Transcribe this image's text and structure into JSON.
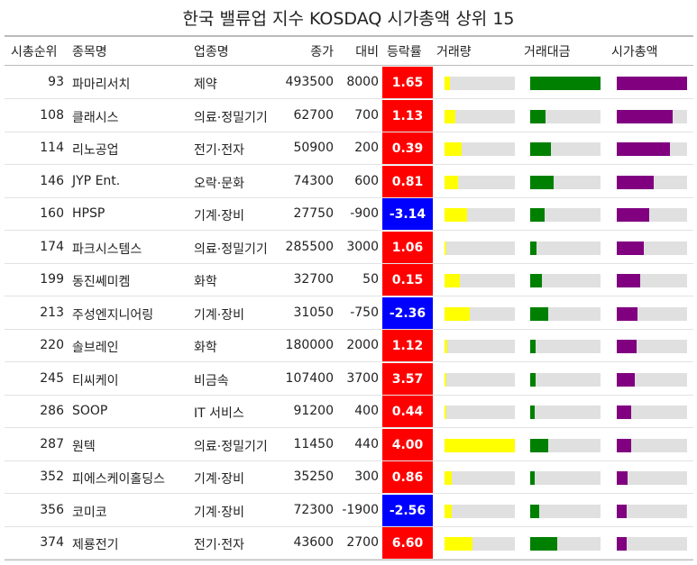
{
  "title": "한국 밸류업 지수 KOSDAQ 시가총액 상위 15",
  "columns": {
    "rank": "시총순위",
    "name": "종목명",
    "sector": "업종명",
    "close": "종가",
    "diff": "대비",
    "change": "등락률",
    "volume": "거래량",
    "turnover": "거래대금",
    "marketcap": "시가총액"
  },
  "colors": {
    "up": "#ff0000",
    "down": "#0000ff",
    "volume": "#ffff00",
    "turnover": "#008000",
    "marketcap": "#800080",
    "track": "#e0e0e0"
  },
  "chart_data": {
    "type": "table",
    "title": "한국 밸류업 지수 KOSDAQ 시가총액 상위 15",
    "rows": [
      {
        "rank": "93",
        "name": "파마리서치",
        "sector": "제약",
        "close": "493500",
        "diff": "8000",
        "change": "1.65",
        "volume": 0.08,
        "turnover": 1.0,
        "marketcap": 1.0
      },
      {
        "rank": "108",
        "name": "클래시스",
        "sector": "의료·정밀기기",
        "close": "62700",
        "diff": "700",
        "change": "1.13",
        "volume": 0.15,
        "turnover": 0.22,
        "marketcap": 0.8
      },
      {
        "rank": "114",
        "name": "리노공업",
        "sector": "전기·전자",
        "close": "50900",
        "diff": "200",
        "change": "0.39",
        "volume": 0.24,
        "turnover": 0.3,
        "marketcap": 0.75
      },
      {
        "rank": "146",
        "name": "JYP Ent.",
        "sector": "오락·문화",
        "close": "74300",
        "diff": "600",
        "change": "0.81",
        "volume": 0.19,
        "turnover": 0.33,
        "marketcap": 0.52
      },
      {
        "rank": "160",
        "name": "HPSP",
        "sector": "기계·장비",
        "close": "27750",
        "diff": "-900",
        "change": "-3.14",
        "volume": 0.32,
        "turnover": 0.21,
        "marketcap": 0.46
      },
      {
        "rank": "174",
        "name": "파크시스템스",
        "sector": "의료·정밀기기",
        "close": "285500",
        "diff": "3000",
        "change": "1.06",
        "volume": 0.02,
        "turnover": 0.09,
        "marketcap": 0.39
      },
      {
        "rank": "199",
        "name": "동진쎄미켐",
        "sector": "화학",
        "close": "32700",
        "diff": "50",
        "change": "0.15",
        "volume": 0.22,
        "turnover": 0.17,
        "marketcap": 0.33
      },
      {
        "rank": "213",
        "name": "주성엔지니어링",
        "sector": "기계·장비",
        "close": "31050",
        "diff": "-750",
        "change": "-2.36",
        "volume": 0.36,
        "turnover": 0.25,
        "marketcap": 0.29
      },
      {
        "rank": "220",
        "name": "솔브레인",
        "sector": "화학",
        "close": "180000",
        "diff": "2000",
        "change": "1.12",
        "volume": 0.04,
        "turnover": 0.08,
        "marketcap": 0.28
      },
      {
        "rank": "245",
        "name": "티씨케이",
        "sector": "비금속",
        "close": "107400",
        "diff": "3700",
        "change": "3.57",
        "volume": 0.03,
        "turnover": 0.08,
        "marketcap": 0.25
      },
      {
        "rank": "286",
        "name": "SOOP",
        "sector": "IT 서비스",
        "close": "91200",
        "diff": "400",
        "change": "0.44",
        "volume": 0.03,
        "turnover": 0.07,
        "marketcap": 0.2
      },
      {
        "rank": "287",
        "name": "원텍",
        "sector": "의료·정밀기기",
        "close": "11450",
        "diff": "440",
        "change": "4.00",
        "volume": 1.0,
        "turnover": 0.25,
        "marketcap": 0.2
      },
      {
        "rank": "352",
        "name": "피에스케이홀딩스",
        "sector": "기계·장비",
        "close": "35250",
        "diff": "300",
        "change": "0.86",
        "volume": 0.1,
        "turnover": 0.06,
        "marketcap": 0.15
      },
      {
        "rank": "356",
        "name": "코미코",
        "sector": "기계·장비",
        "close": "72300",
        "diff": "-1900",
        "change": "-2.56",
        "volume": 0.1,
        "turnover": 0.13,
        "marketcap": 0.14
      },
      {
        "rank": "374",
        "name": "제룡전기",
        "sector": "전기·전자",
        "close": "43600",
        "diff": "2700",
        "change": "6.60",
        "volume": 0.4,
        "turnover": 0.39,
        "marketcap": 0.14
      }
    ]
  }
}
